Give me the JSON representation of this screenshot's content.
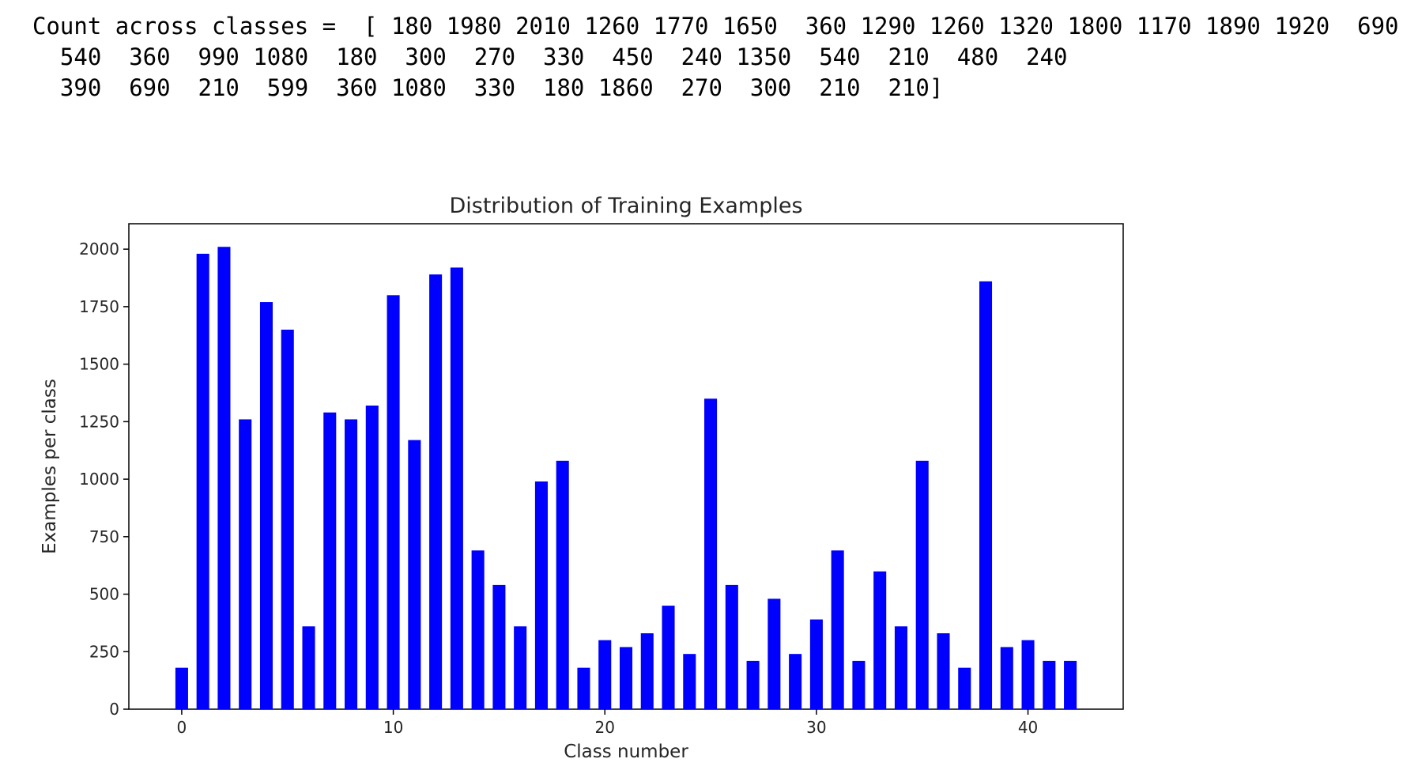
{
  "output": {
    "lines": [
      "Count across classes =  [ 180 1980 2010 1260 1770 1650  360 1290 1260 1320 1800 1170 1890 1920  690",
      "  540  360  990 1080  180  300  270  330  450  240 1350  540  210  480  240",
      "  390  690  210  599  360 1080  330  180 1860  270  300  210  210]"
    ]
  },
  "chart_data": {
    "type": "bar",
    "title": "Distribution of Training Examples",
    "xlabel": "Class number",
    "ylabel": "Examples per class",
    "x": [
      0,
      1,
      2,
      3,
      4,
      5,
      6,
      7,
      8,
      9,
      10,
      11,
      12,
      13,
      14,
      15,
      16,
      17,
      18,
      19,
      20,
      21,
      22,
      23,
      24,
      25,
      26,
      27,
      28,
      29,
      30,
      31,
      32,
      33,
      34,
      35,
      36,
      37,
      38,
      39,
      40,
      41,
      42
    ],
    "values": [
      180,
      1980,
      2010,
      1260,
      1770,
      1650,
      360,
      1290,
      1260,
      1320,
      1800,
      1170,
      1890,
      1920,
      690,
      540,
      360,
      990,
      1080,
      180,
      300,
      270,
      330,
      450,
      240,
      1350,
      540,
      210,
      480,
      240,
      390,
      690,
      210,
      599,
      360,
      1080,
      330,
      180,
      1860,
      270,
      300,
      210,
      210
    ],
    "xlim": [
      -2.5,
      44.5
    ],
    "ylim": [
      0,
      2110.5
    ],
    "xticks": [
      0,
      10,
      20,
      30,
      40
    ],
    "yticks": [
      0,
      250,
      500,
      750,
      1000,
      1250,
      1500,
      1750,
      2000
    ],
    "bar_color": "#0000ff",
    "bar_width": 0.6,
    "grid": false,
    "legend": "none"
  }
}
